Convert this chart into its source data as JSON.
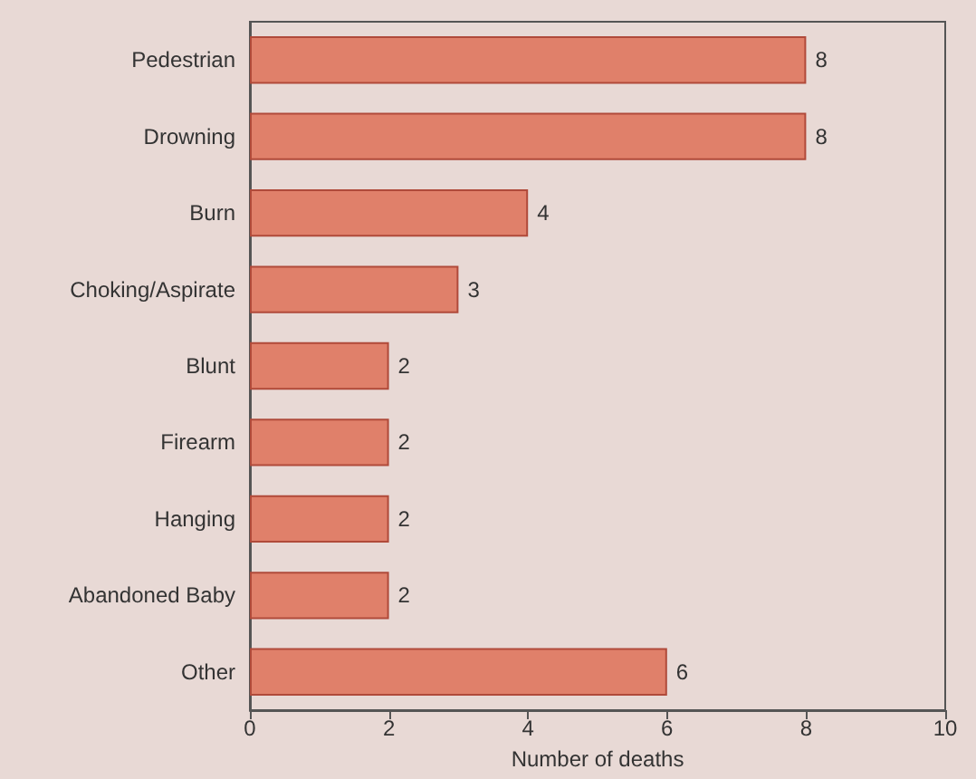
{
  "chart_data": {
    "type": "bar",
    "orientation": "horizontal",
    "xlabel": "Number of deaths",
    "categories": [
      "Pedestrian",
      "Drowning",
      "Burn",
      "Choking/Aspirate",
      "Blunt",
      "Firearm",
      "Hanging",
      "Abandoned Baby",
      "Other"
    ],
    "values": [
      8,
      8,
      4,
      3,
      2,
      2,
      2,
      2,
      6
    ],
    "color": "#e0806a",
    "data_labels": true,
    "xlim": [
      0,
      10
    ],
    "xticks": [
      0,
      2,
      4,
      6,
      8,
      10
    ],
    "grid": false
  }
}
